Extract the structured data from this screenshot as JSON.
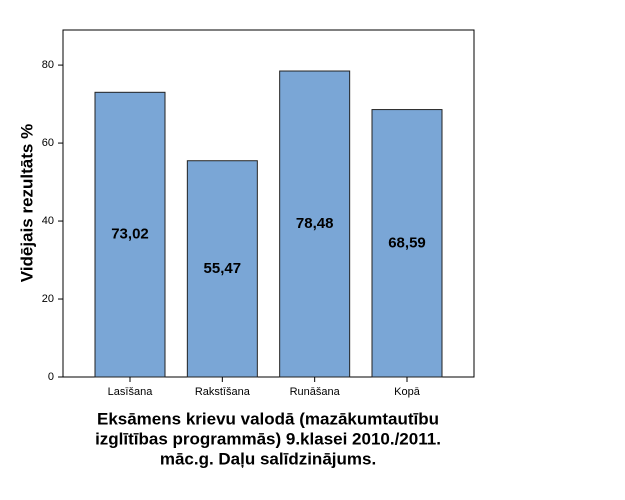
{
  "chart_data": {
    "type": "bar",
    "xlabel": [
      "Eksāmens krievu valodā (mazākumtautību",
      "izglītības programmās) 9.klasei 2010./2011.",
      "māc.g. Daļu salīdzinājums."
    ],
    "ylabel": "Vidējais rezultāts %",
    "categories": [
      "Lasīšana",
      "Rakstīšana",
      "Runāšana",
      "Kopā"
    ],
    "values": [
      73.02,
      55.47,
      78.48,
      68.59
    ],
    "value_labels": [
      "73,02",
      "55,47",
      "78,48",
      "68,59"
    ],
    "color": "#7aa6d6",
    "ylim": [
      0,
      89
    ],
    "yticks": [
      0,
      20,
      40,
      60,
      80
    ],
    "grid": false
  }
}
